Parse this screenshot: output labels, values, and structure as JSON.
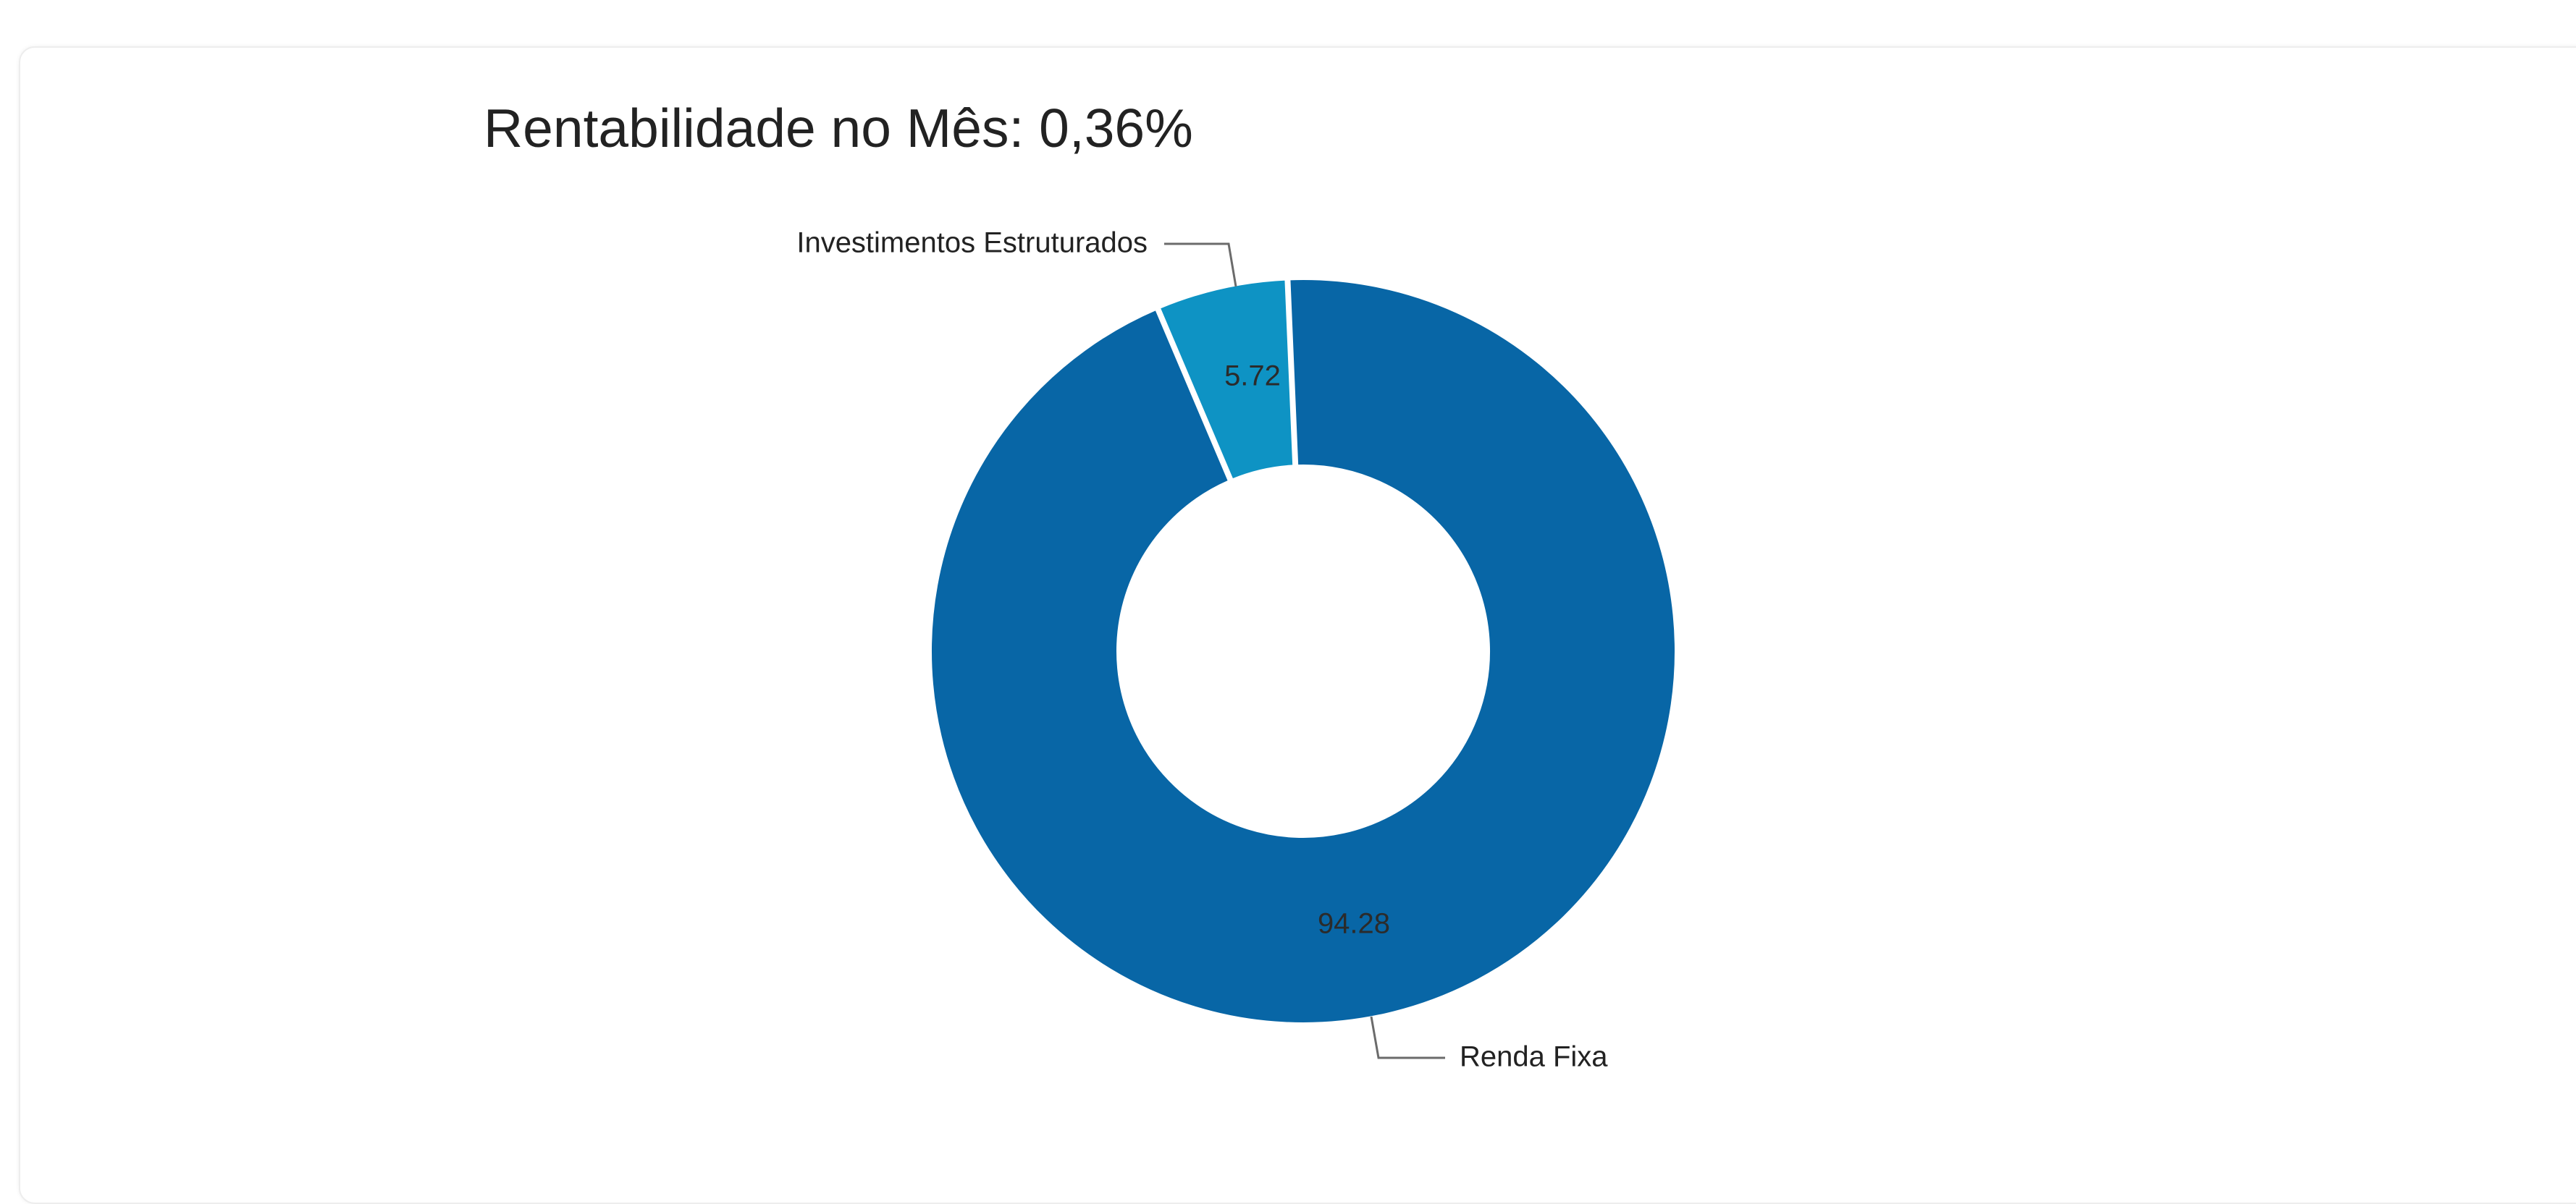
{
  "chart_data": {
    "type": "pie",
    "variant": "donut",
    "title": "Rentabilidade no Mês: 0,36%",
    "start_angle_deg": -23,
    "series": [
      {
        "name": "Investimentos Estruturados",
        "value": 5.72,
        "value_label": "5.72",
        "color": "#0e93c4"
      },
      {
        "name": "Renda Fixa",
        "value": 94.28,
        "value_label": "94.28",
        "color": "#0866a6"
      }
    ],
    "legend": "none",
    "labels": "leader-lines"
  },
  "colors": {
    "background": "#ffffff",
    "leader_line": "#6b6b6b",
    "title_text": "#222222"
  }
}
